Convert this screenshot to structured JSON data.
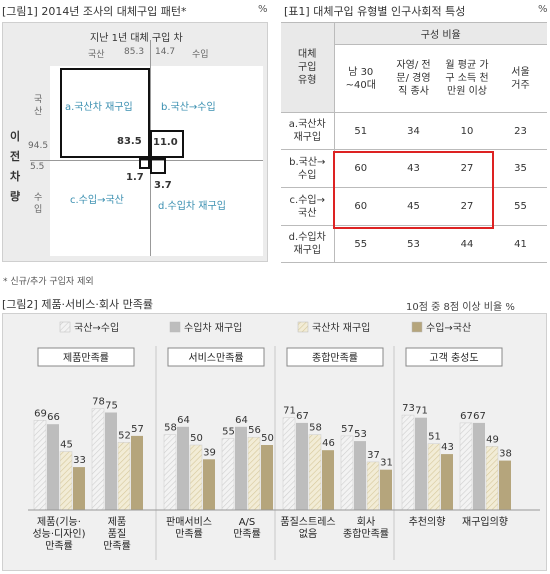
{
  "fig1": {
    "title": "[그림1] 2014년 조사의 대체구입 패턴*",
    "pct": "%",
    "top_header": "지난 1년 대체 구입 차",
    "col_domestic": "국산",
    "col_domestic_val": "85.3",
    "col_import_val": "14.7",
    "col_import": "수입",
    "row_prev_car": "이전 차량",
    "row_domestic": "국산",
    "row_domestic_val": "94.5",
    "row_import_val": "5.5",
    "row_import": "수입",
    "cell_dd_label": "a.국산차 재구입",
    "cell_dd_val": "83.5",
    "cell_di_label": "b.국산→수입",
    "cell_di_val": "11.0",
    "cell_id_label": "c.수입→국산",
    "cell_id_val": "1.7",
    "cell_ii_label": "d.수입차 재구입",
    "cell_ii_val": "3.7",
    "footnote": "* 신규/추가 구입자 제외"
  },
  "table1": {
    "title": "[표1] 대체구입 유형별 인구사회적 특성",
    "pct": "%",
    "col_type": "대체 구입 유형",
    "col_group": "구성 비율",
    "headers": [
      "남 30 ~40대",
      "자영/ 전문/ 경영직 종사",
      "월 평균 가구 소득 천만원 이상",
      "서울 거주"
    ],
    "rows": [
      {
        "label": "a.국산차 재구입",
        "values": [
          "51",
          "34",
          "10",
          "23"
        ]
      },
      {
        "label": "b.국산→ 수입",
        "values": [
          "60",
          "43",
          "27",
          "35"
        ]
      },
      {
        "label": "c.수입→ 국산",
        "values": [
          "60",
          "45",
          "27",
          "55"
        ]
      },
      {
        "label": "d.수입차 재구입",
        "values": [
          "55",
          "53",
          "44",
          "41"
        ]
      }
    ]
  },
  "fig2": {
    "title": "[그림2] 제품·서비스·회사  만족률",
    "pct_note": "10점 중 8점 이상 비율 %"
  },
  "chart_data": {
    "type": "bar",
    "series": [
      {
        "name": "국산→수입",
        "values": [
          69,
          78,
          58,
          55,
          71,
          57,
          73,
          67
        ],
        "color": "#f3f3f3",
        "pattern": "hatch"
      },
      {
        "name": "수입차 재구입",
        "values": [
          66,
          75,
          64,
          64,
          67,
          53,
          71,
          67
        ],
        "color": "#bdbdbd"
      },
      {
        "name": "국산차 재구입",
        "values": [
          45,
          52,
          50,
          56,
          58,
          37,
          51,
          49
        ],
        "color": "#ede6cd",
        "pattern": "hatch"
      },
      {
        "name": "수입→국산",
        "values": [
          33,
          57,
          39,
          50,
          46,
          31,
          43,
          38
        ],
        "color": "#b5a57c"
      }
    ],
    "groups": [
      "제품만족률",
      "서비스만족률",
      "종합만족률",
      "고객 충성도"
    ],
    "categories": [
      "제품(기능· 성능·디자인) 만족률",
      "제품 품질 만족률",
      "판매서비스 만족률",
      "A/S 만족률",
      "품질스트레스 없음",
      "회사 종합만족률",
      "추천의향",
      "재구입의향"
    ],
    "ylim": [
      0,
      100
    ]
  }
}
